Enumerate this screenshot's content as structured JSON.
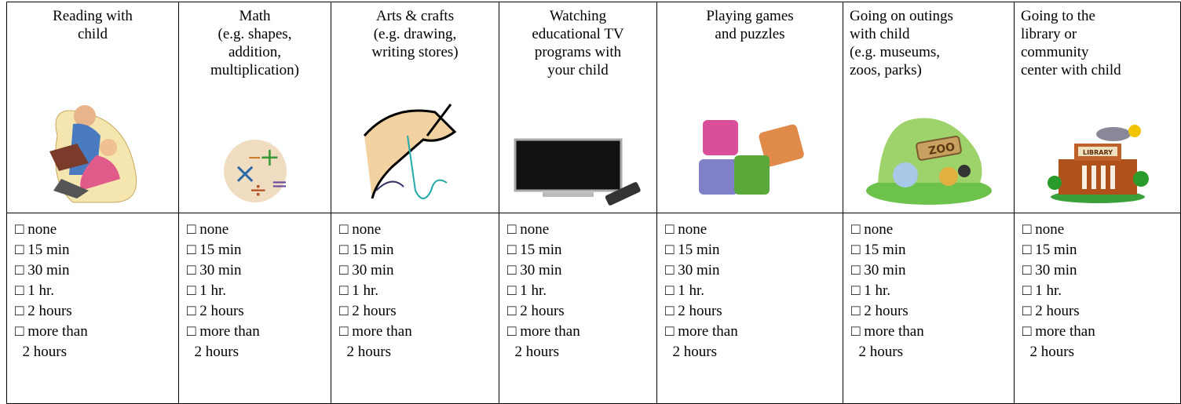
{
  "table": {
    "columns": [
      {
        "header": "Reading with\nchild",
        "options": [
          "□ none",
          "□ 15 min",
          "□ 30 min",
          "□ 1 hr.",
          "□ 2 hours",
          "□ more than\n  2 hours"
        ]
      },
      {
        "header": "Math\n(e.g. shapes,\naddition,\nmultiplication)",
        "options": [
          "□ none",
          "□ 15 min",
          "□ 30 min",
          "□ 1 hr.",
          "□ 2 hours",
          "□ more than\n  2 hours"
        ]
      },
      {
        "header": "Arts & crafts\n(e.g. drawing,\nwriting stores)",
        "options": [
          "□ none",
          "□ 15 min",
          "□ 30 min",
          "□ 1 hr.",
          "□ 2 hours",
          "□ more than\n  2 hours"
        ]
      },
      {
        "header": "Watching\neducational TV\nprograms with\nyour child",
        "options": [
          "□ none",
          "□ 15 min",
          "□ 30 min",
          "□ 1 hr.",
          "□ 2 hours",
          "□ more than\n  2 hours"
        ]
      },
      {
        "header": "Playing games\nand puzzles",
        "options": [
          "□ none",
          "□ 15 min",
          "□ 30 min",
          "□ 1 hr.",
          "□ 2 hours",
          "□ more than\n  2 hours"
        ]
      },
      {
        "header": "Going on outings\nwith child\n(e.g. museums,\nzoos, parks)",
        "icon_text": "ZOO",
        "options": [
          "□ none",
          "□ 15 min",
          "□ 30 min",
          "□ 1 hr.",
          "□ 2 hours",
          "□ more than\n  2 hours"
        ]
      },
      {
        "header": "Going to the\nlibrary or\ncommunity\ncenter with child",
        "icon_text": "LIBRARY",
        "options": [
          "□ none",
          "□ 15 min",
          "□ 30 min",
          "□ 1 hr.",
          "□ 2 hours",
          "□ more than\n  2 hours"
        ]
      }
    ]
  }
}
